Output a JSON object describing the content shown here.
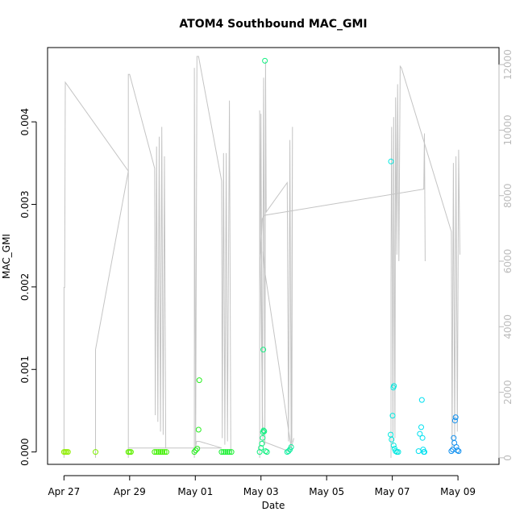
{
  "chart_data": {
    "type": "scatter",
    "title": "ATOM4 Southbound MAC_GMI",
    "xlabel": "Date",
    "ylabel": "MAC_GMI",
    "x_ticks": [
      {
        "value": 0,
        "label": "Apr 27"
      },
      {
        "value": 2,
        "label": "Apr 29"
      },
      {
        "value": 4,
        "label": "May 01"
      },
      {
        "value": 6,
        "label": "May 03"
      },
      {
        "value": 8,
        "label": "May 05"
      },
      {
        "value": 10,
        "label": "May 07"
      },
      {
        "value": 12,
        "label": "May 09"
      }
    ],
    "xlim": [
      -0.5,
      13.25
    ],
    "ylim": [
      -0.00015,
      0.0049
    ],
    "y_ticks": [
      0.0,
      0.001,
      0.002,
      0.003,
      0.004
    ],
    "y_tick_labels": [
      "0.000",
      "0.001",
      "0.002",
      "0.003",
      "0.004"
    ],
    "y2_lim": [
      -200,
      12520
    ],
    "y2_ticks": [
      0,
      2000,
      4000,
      6000,
      8000,
      10000,
      12000
    ],
    "y2_tick_labels": [
      "0",
      "2000",
      "4000",
      "6000",
      "8000",
      "10000",
      "12000"
    ],
    "y2_color": "#bbbbbb",
    "line_color": "#c4c4c4",
    "grid": false,
    "points": [
      {
        "x": 0.0,
        "y": 0.0,
        "color": "#90ee00"
      },
      {
        "x": 0.04,
        "y": 0.0,
        "color": "#90ee00"
      },
      {
        "x": 0.08,
        "y": 0.0,
        "color": "#90ee00"
      },
      {
        "x": 0.12,
        "y": 0.0,
        "color": "#90ee00"
      },
      {
        "x": 0.96,
        "y": 0.0,
        "color": "#80f000"
      },
      {
        "x": 1.96,
        "y": 0.0,
        "color": "#60f000"
      },
      {
        "x": 2.0,
        "y": 0.0,
        "color": "#60f000"
      },
      {
        "x": 2.04,
        "y": 0.0,
        "color": "#60f000"
      },
      {
        "x": 2.76,
        "y": 0.0,
        "color": "#40f000"
      },
      {
        "x": 2.82,
        "y": 0.0,
        "color": "#40f000"
      },
      {
        "x": 2.88,
        "y": 0.0,
        "color": "#40f000"
      },
      {
        "x": 2.94,
        "y": 0.0,
        "color": "#40f000"
      },
      {
        "x": 3.0,
        "y": 0.0,
        "color": "#40f000"
      },
      {
        "x": 3.06,
        "y": 0.0,
        "color": "#40f000"
      },
      {
        "x": 3.12,
        "y": 0.0,
        "color": "#40f000"
      },
      {
        "x": 3.97,
        "y": 0.0,
        "color": "#28f020"
      },
      {
        "x": 4.01,
        "y": 2e-05,
        "color": "#28f020"
      },
      {
        "x": 4.06,
        "y": 4e-05,
        "color": "#28f020"
      },
      {
        "x": 4.1,
        "y": 0.00027,
        "color": "#28f020"
      },
      {
        "x": 4.12,
        "y": 0.00087,
        "color": "#28f020"
      },
      {
        "x": 4.8,
        "y": 0.0,
        "color": "#18f030"
      },
      {
        "x": 4.86,
        "y": 0.0,
        "color": "#18f030"
      },
      {
        "x": 4.92,
        "y": 0.0,
        "color": "#18f030"
      },
      {
        "x": 4.98,
        "y": 0.0,
        "color": "#18f030"
      },
      {
        "x": 5.04,
        "y": 0.0,
        "color": "#18f030"
      },
      {
        "x": 5.1,
        "y": 0.0,
        "color": "#18f030"
      },
      {
        "x": 5.96,
        "y": 0.0,
        "color": "#10f080"
      },
      {
        "x": 6.0,
        "y": 5e-05,
        "color": "#10f080"
      },
      {
        "x": 6.03,
        "y": 0.0001,
        "color": "#10f080"
      },
      {
        "x": 6.05,
        "y": 0.00017,
        "color": "#10f080"
      },
      {
        "x": 6.06,
        "y": 0.00024,
        "color": "#10f080"
      },
      {
        "x": 6.08,
        "y": 0.00026,
        "color": "#10f080"
      },
      {
        "x": 6.1,
        "y": 0.00025,
        "color": "#10f080"
      },
      {
        "x": 6.07,
        "y": 0.00124,
        "color": "#10f080"
      },
      {
        "x": 6.12,
        "y": 0.00474,
        "color": "#10f080"
      },
      {
        "x": 6.14,
        "y": 1e-05,
        "color": "#10f080"
      },
      {
        "x": 6.18,
        "y": 0.0,
        "color": "#10f080"
      },
      {
        "x": 6.8,
        "y": 0.0,
        "color": "#10f0a0"
      },
      {
        "x": 6.84,
        "y": 1e-05,
        "color": "#10f0a0"
      },
      {
        "x": 6.88,
        "y": 3e-05,
        "color": "#10f0a0"
      },
      {
        "x": 6.92,
        "y": 6e-05,
        "color": "#10f0a0"
      },
      {
        "x": 9.96,
        "y": 0.00352,
        "color": "#00e8e0"
      },
      {
        "x": 9.95,
        "y": 0.00021,
        "color": "#00e8e0"
      },
      {
        "x": 9.98,
        "y": 0.00015,
        "color": "#00e8e0"
      },
      {
        "x": 10.01,
        "y": 0.00044,
        "color": "#00e8e0"
      },
      {
        "x": 10.03,
        "y": 0.00078,
        "color": "#00e8e0"
      },
      {
        "x": 10.05,
        "y": 0.0008,
        "color": "#00e8e0"
      },
      {
        "x": 10.04,
        "y": 8e-05,
        "color": "#00e8e0"
      },
      {
        "x": 10.07,
        "y": 4e-05,
        "color": "#00e8e0"
      },
      {
        "x": 10.1,
        "y": 1e-05,
        "color": "#00e8e0"
      },
      {
        "x": 10.14,
        "y": 0.0,
        "color": "#00e8e0"
      },
      {
        "x": 10.18,
        "y": 0.0,
        "color": "#00e8e0"
      },
      {
        "x": 10.8,
        "y": 1e-05,
        "color": "#00e0f0"
      },
      {
        "x": 10.84,
        "y": 0.00022,
        "color": "#00e0f0"
      },
      {
        "x": 10.88,
        "y": 0.0003,
        "color": "#00e0f0"
      },
      {
        "x": 10.9,
        "y": 0.00063,
        "color": "#00e0f0"
      },
      {
        "x": 10.92,
        "y": 0.00017,
        "color": "#00e0f0"
      },
      {
        "x": 10.94,
        "y": 3e-05,
        "color": "#00e0f0"
      },
      {
        "x": 10.96,
        "y": 0.0,
        "color": "#00e0f0"
      },
      {
        "x": 10.98,
        "y": 0.0,
        "color": "#00e0f0"
      },
      {
        "x": 11.8,
        "y": 1e-05,
        "color": "#1090f0"
      },
      {
        "x": 11.84,
        "y": 3e-05,
        "color": "#1090f0"
      },
      {
        "x": 11.87,
        "y": 0.00017,
        "color": "#1090f0"
      },
      {
        "x": 11.89,
        "y": 0.00011,
        "color": "#1090f0"
      },
      {
        "x": 11.91,
        "y": 0.00038,
        "color": "#1090f0"
      },
      {
        "x": 11.93,
        "y": 0.00042,
        "color": "#1090f0"
      },
      {
        "x": 11.95,
        "y": 6e-05,
        "color": "#1090f0"
      },
      {
        "x": 11.98,
        "y": 2e-05,
        "color": "#1090f0"
      },
      {
        "x": 12.02,
        "y": 1e-05,
        "color": "#1090f0"
      }
    ],
    "series_right": {
      "segments": [
        [
          [
            0.0,
            0
          ],
          [
            0.0,
            5200
          ],
          [
            0.02,
            5200
          ],
          [
            0.04,
            11460
          ],
          [
            1.96,
            8750
          ],
          [
            0.96,
            3300
          ],
          [
            0.96,
            0
          ]
        ],
        [
          [
            1.96,
            0
          ],
          [
            1.96,
            11700
          ],
          [
            2.0,
            11700
          ],
          [
            2.76,
            8840
          ],
          [
            2.78,
            1300
          ],
          [
            2.82,
            9500
          ],
          [
            2.86,
            1100
          ],
          [
            2.9,
            9800
          ],
          [
            2.94,
            800
          ],
          [
            2.98,
            10100
          ],
          [
            3.02,
            700
          ],
          [
            3.06,
            9200
          ],
          [
            3.1,
            300
          ]
        ],
        [
          [
            3.97,
            0
          ],
          [
            3.97,
            11900
          ],
          [
            4.01,
            300
          ],
          [
            4.05,
            12250
          ],
          [
            4.1,
            12250
          ],
          [
            4.8,
            8450
          ],
          [
            4.82,
            600
          ],
          [
            4.86,
            9300
          ],
          [
            4.9,
            400
          ],
          [
            4.94,
            9300
          ],
          [
            4.98,
            500
          ],
          [
            5.04,
            10900
          ],
          [
            5.08,
            200
          ]
        ],
        [
          [
            5.96,
            0
          ],
          [
            5.96,
            10600
          ],
          [
            5.98,
            6200
          ],
          [
            6.0,
            10500
          ],
          [
            6.04,
            800
          ],
          [
            6.08,
            11600
          ],
          [
            6.12,
            400
          ],
          [
            6.14,
            12100
          ],
          [
            6.16,
            7500
          ],
          [
            6.8,
            8400
          ],
          [
            6.84,
            500
          ],
          [
            6.88,
            9700
          ],
          [
            6.92,
            200
          ],
          [
            6.96,
            10100
          ],
          [
            6.94,
            500
          ],
          [
            6.84,
            200
          ],
          [
            6.06,
            500
          ],
          [
            5.98,
            6000
          ],
          [
            6.04,
            7300
          ],
          [
            6.1,
            7400
          ],
          [
            10.96,
            8200
          ],
          [
            10.98,
            9900
          ],
          [
            11.0,
            6000
          ]
        ],
        [
          [
            9.96,
            0
          ],
          [
            9.96,
            5300
          ],
          [
            9.98,
            10100
          ],
          [
            10.02,
            400
          ],
          [
            10.04,
            10400
          ],
          [
            10.08,
            600
          ],
          [
            10.1,
            11000
          ],
          [
            10.14,
            6200
          ],
          [
            10.16,
            11400
          ],
          [
            10.2,
            6000
          ],
          [
            10.24,
            11950
          ],
          [
            10.28,
            11900
          ],
          [
            11.8,
            6900
          ],
          [
            11.82,
            300
          ],
          [
            11.86,
            9000
          ],
          [
            11.9,
            600
          ],
          [
            11.94,
            9200
          ],
          [
            11.98,
            800
          ],
          [
            12.02,
            9400
          ],
          [
            12.06,
            6200
          ]
        ],
        [
          [
            4.0,
            300
          ],
          [
            4.04,
            500
          ],
          [
            4.12,
            500
          ],
          [
            4.8,
            300
          ],
          [
            2.06,
            300
          ],
          [
            1.96,
            300
          ]
        ],
        [
          [
            6.06,
            6300
          ],
          [
            6.1,
            5800
          ],
          [
            6.92,
            300
          ],
          [
            7.0,
            600
          ]
        ]
      ]
    }
  }
}
